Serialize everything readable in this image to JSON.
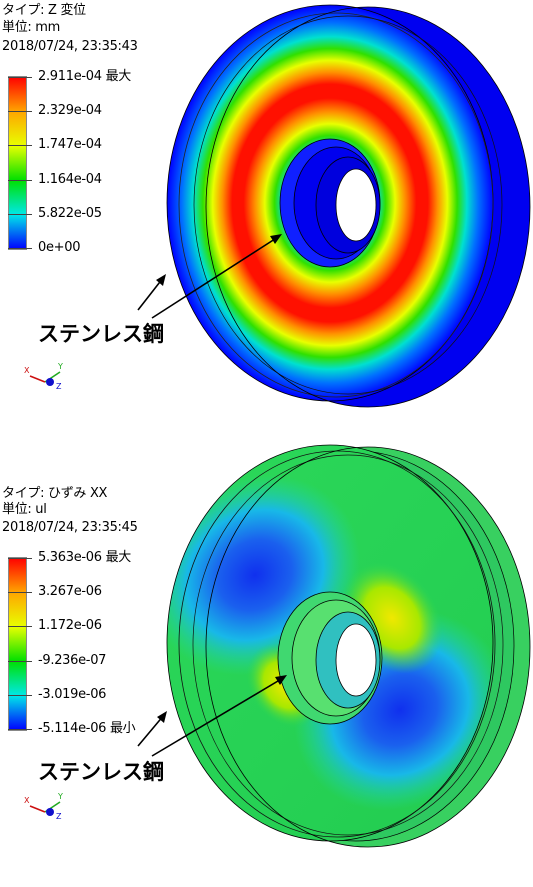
{
  "panels": [
    {
      "type_line": "タイプ: Z 変位",
      "unit_line": "単位: mm",
      "timestamp": "2018/07/24, 23:35:43",
      "legend": {
        "labels": [
          "2.911e-04 最大",
          "2.329e-04",
          "1.747e-04",
          "1.164e-04",
          "5.822e-05",
          "0e+00"
        ],
        "colors": [
          "#ff0000",
          "#ffa500",
          "#e8ff00",
          "#00e000",
          "#00e8e8",
          "#0000ff"
        ]
      },
      "callout": "ステンレス鋼",
      "axes": {
        "x": "X",
        "y": "Y",
        "z": "Z"
      }
    },
    {
      "type_line": "タイプ: ひずみ XX",
      "unit_line": "単位: ul",
      "timestamp": "2018/07/24, 23:35:45",
      "legend": {
        "labels": [
          "5.363e-06 最大",
          "3.267e-06",
          "1.172e-06",
          "-9.236e-07",
          "-3.019e-06",
          "-5.114e-06 最小"
        ],
        "colors": [
          "#ff0000",
          "#ffa500",
          "#e8ff00",
          "#00e000",
          "#00e8e8",
          "#0000ff"
        ]
      },
      "callout": "ステンレス鋼",
      "axes": {
        "x": "X",
        "y": "Y",
        "z": "Z"
      }
    }
  ]
}
